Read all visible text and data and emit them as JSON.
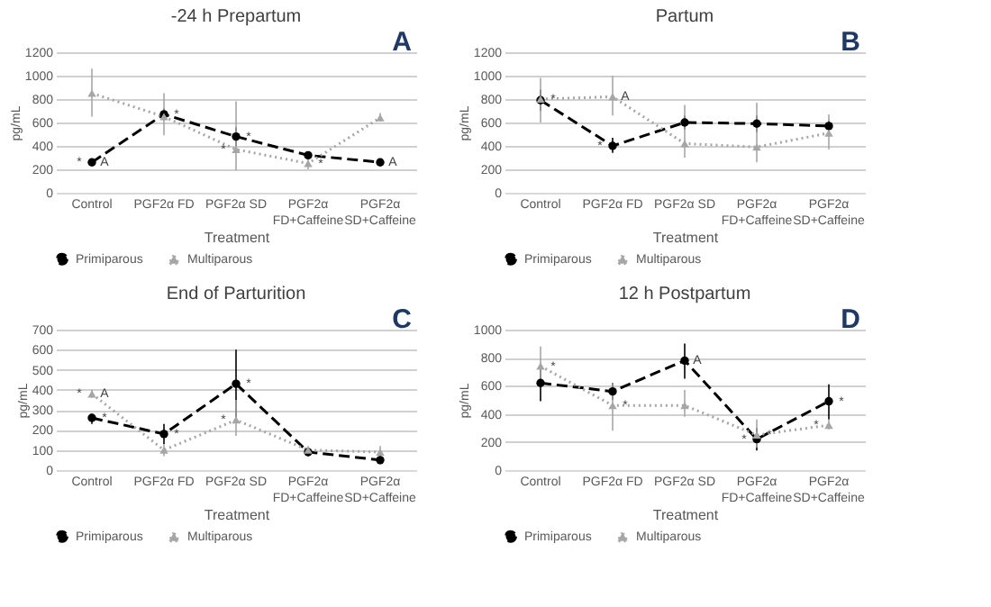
{
  "chart_data": [
    {
      "type": "line",
      "title": "-24 h Prepartum",
      "xlabel": "Treatment",
      "ylabel": "pg/mL",
      "categories": [
        "Control",
        "PGF2α FD",
        "PGF2α SD",
        "PGF2α\nFD+Caffeine",
        "PGF2α\nSD+Caffeine"
      ],
      "ylim": [
        0,
        1200
      ],
      "yticks": [
        0,
        200,
        400,
        600,
        800,
        1000,
        1200
      ],
      "grid": "y",
      "legend": "bottom",
      "series": [
        {
          "name": "Primiparous",
          "color": "#000000",
          "marker": "circle",
          "line_style": "dashed",
          "values": [
            260,
            670,
            480,
            320,
            260
          ],
          "errors": [
            null,
            [
              620,
              720
            ],
            [
              400,
              560
            ],
            [
              290,
              350
            ],
            null
          ]
        },
        {
          "name": "Multiparous",
          "color": "#a6a6a6",
          "marker": "triangle",
          "line_style": "dotted",
          "values": [
            850,
            650,
            370,
            250,
            640
          ],
          "errors": [
            [
              650,
              1060
            ],
            [
              490,
              850
            ],
            [
              190,
              780
            ],
            [
              200,
              300
            ],
            [
              610,
              680
            ]
          ]
        }
      ],
      "annotations": [
        "A",
        {
          "text": "A",
          "x": "Control",
          "y": 260
        },
        {
          "text": "*",
          "x": "Control",
          "y": 260
        },
        {
          "text": "*",
          "x": "PGF2α FD",
          "y": 670
        },
        {
          "text": "*",
          "x": "PGF2α SD",
          "y": 480
        },
        {
          "text": "*",
          "x": "PGF2α SD",
          "y": 370
        },
        {
          "text": "*",
          "x": "PGF2α\nFD+Caffeine",
          "y": 250
        },
        {
          "text": "A",
          "x": "PGF2α\nSD+Caffeine",
          "y": 260
        }
      ]
    },
    {
      "type": "line",
      "title": "Partum",
      "xlabel": "Treatment",
      "ylabel": "pg/mL",
      "categories": [
        "Control",
        "PGF2α FD",
        "PGF2α SD",
        "PGF2α\nFD+Caffeine",
        "PGF2α\nSD+Caffeine"
      ],
      "ylim": [
        0,
        1200
      ],
      "yticks": [
        0,
        200,
        400,
        600,
        800,
        1000,
        1200
      ],
      "grid": "y",
      "legend": "bottom",
      "series": [
        {
          "name": "Primiparous",
          "color": "#000000",
          "marker": "circle",
          "line_style": "dashed",
          "values": [
            790,
            400,
            600,
            590,
            570
          ],
          "errors": [
            [
              700,
              880
            ],
            [
              340,
              470
            ],
            [
              540,
              660
            ],
            [
              520,
              660
            ],
            [
              520,
              620
            ]
          ]
        },
        {
          "name": "Multiparous",
          "color": "#a6a6a6",
          "marker": "triangle",
          "line_style": "dotted",
          "values": [
            800,
            820,
            420,
            390,
            510
          ],
          "errors": [
            [
              600,
              980
            ],
            [
              660,
              1000
            ],
            [
              300,
              750
            ],
            [
              260,
              770
            ],
            [
              370,
              670
            ]
          ]
        }
      ],
      "annotations": [
        "B",
        {
          "text": "*",
          "x": "Control",
          "y": 800
        },
        {
          "text": "A",
          "x": "PGF2α FD",
          "y": 820
        },
        {
          "text": "*",
          "x": "PGF2α FD",
          "y": 400
        }
      ]
    },
    {
      "type": "line",
      "title": "End of Parturition",
      "xlabel": "Treatment",
      "ylabel": "pg/mL",
      "categories": [
        "Control",
        "PGF2α FD",
        "PGF2α SD",
        "PGF2α\nFD+Caffeine",
        "PGF2α\nSD+Caffeine"
      ],
      "ylim": [
        0,
        700
      ],
      "yticks": [
        0,
        100,
        200,
        300,
        400,
        500,
        600,
        700
      ],
      "grid": "y",
      "legend": "bottom",
      "series": [
        {
          "name": "Primiparous",
          "color": "#000000",
          "marker": "circle",
          "line_style": "dashed",
          "values": [
            260,
            180,
            430,
            90,
            50
          ],
          "errors": [
            [
              230,
              280
            ],
            [
              130,
              230
            ],
            [
              260,
              600
            ],
            [
              70,
              100
            ],
            [
              30,
              60
            ]
          ]
        },
        {
          "name": "Multiparous",
          "color": "#a6a6a6",
          "marker": "triangle",
          "line_style": "dotted",
          "values": [
            380,
            100,
            250,
            100,
            90
          ],
          "errors": [
            [
              360,
              400
            ],
            [
              70,
              130
            ],
            [
              170,
              350
            ],
            [
              90,
              120
            ],
            [
              60,
              120
            ]
          ]
        }
      ],
      "annotations": [
        "C",
        {
          "text": "A",
          "x": "Control",
          "y": 380
        },
        {
          "text": "*",
          "x": "Control",
          "y": 380
        },
        {
          "text": "*",
          "x": "Control",
          "y": 260
        },
        {
          "text": "*",
          "x": "PGF2α FD",
          "y": 180
        },
        {
          "text": "*",
          "x": "PGF2α SD",
          "y": 430
        },
        {
          "text": "*",
          "x": "PGF2α SD",
          "y": 250
        }
      ]
    },
    {
      "type": "line",
      "title": "12 h Postpartum",
      "xlabel": "Treatment",
      "ylabel": "pg/mL",
      "categories": [
        "Control",
        "PGF2α FD",
        "PGF2α SD",
        "PGF2α\nFD+Caffeine",
        "PGF2α\nSD+Caffeine"
      ],
      "ylim": [
        0,
        1000
      ],
      "yticks": [
        0,
        200,
        400,
        600,
        800,
        1000
      ],
      "grid": "y",
      "legend": "bottom",
      "series": [
        {
          "name": "Primiparous",
          "color": "#000000",
          "marker": "circle",
          "line_style": "dashed",
          "values": [
            620,
            560,
            780,
            220,
            490
          ],
          "errors": [
            [
              490,
              740
            ],
            [
              500,
              620
            ],
            [
              650,
              900
            ],
            [
              140,
              300
            ],
            [
              360,
              610
            ]
          ]
        },
        {
          "name": "Multiparous",
          "color": "#a6a6a6",
          "marker": "triangle",
          "line_style": "dotted",
          "values": [
            740,
            460,
            460,
            250,
            320
          ],
          "errors": [
            [
              600,
              880
            ],
            [
              280,
              620
            ],
            [
              380,
              570
            ],
            [
              160,
              360
            ],
            [
              290,
              360
            ]
          ]
        }
      ],
      "annotations": [
        "D",
        {
          "text": "*",
          "x": "Control",
          "y": 740
        },
        {
          "text": "*",
          "x": "PGF2α FD",
          "y": 460
        },
        {
          "text": "A",
          "x": "PGF2α SD",
          "y": 780
        },
        {
          "text": "*",
          "x": "PGF2α\nFD+Caffeine",
          "y": 250
        },
        {
          "text": "*",
          "x": "PGF2α\nFD+Caffeine",
          "y": 220
        },
        {
          "text": "*",
          "x": "PGF2α\nSD+Caffeine",
          "y": 490
        },
        {
          "text": "*",
          "x": "PGF2α\nSD+Caffeine",
          "y": 320
        }
      ]
    }
  ]
}
